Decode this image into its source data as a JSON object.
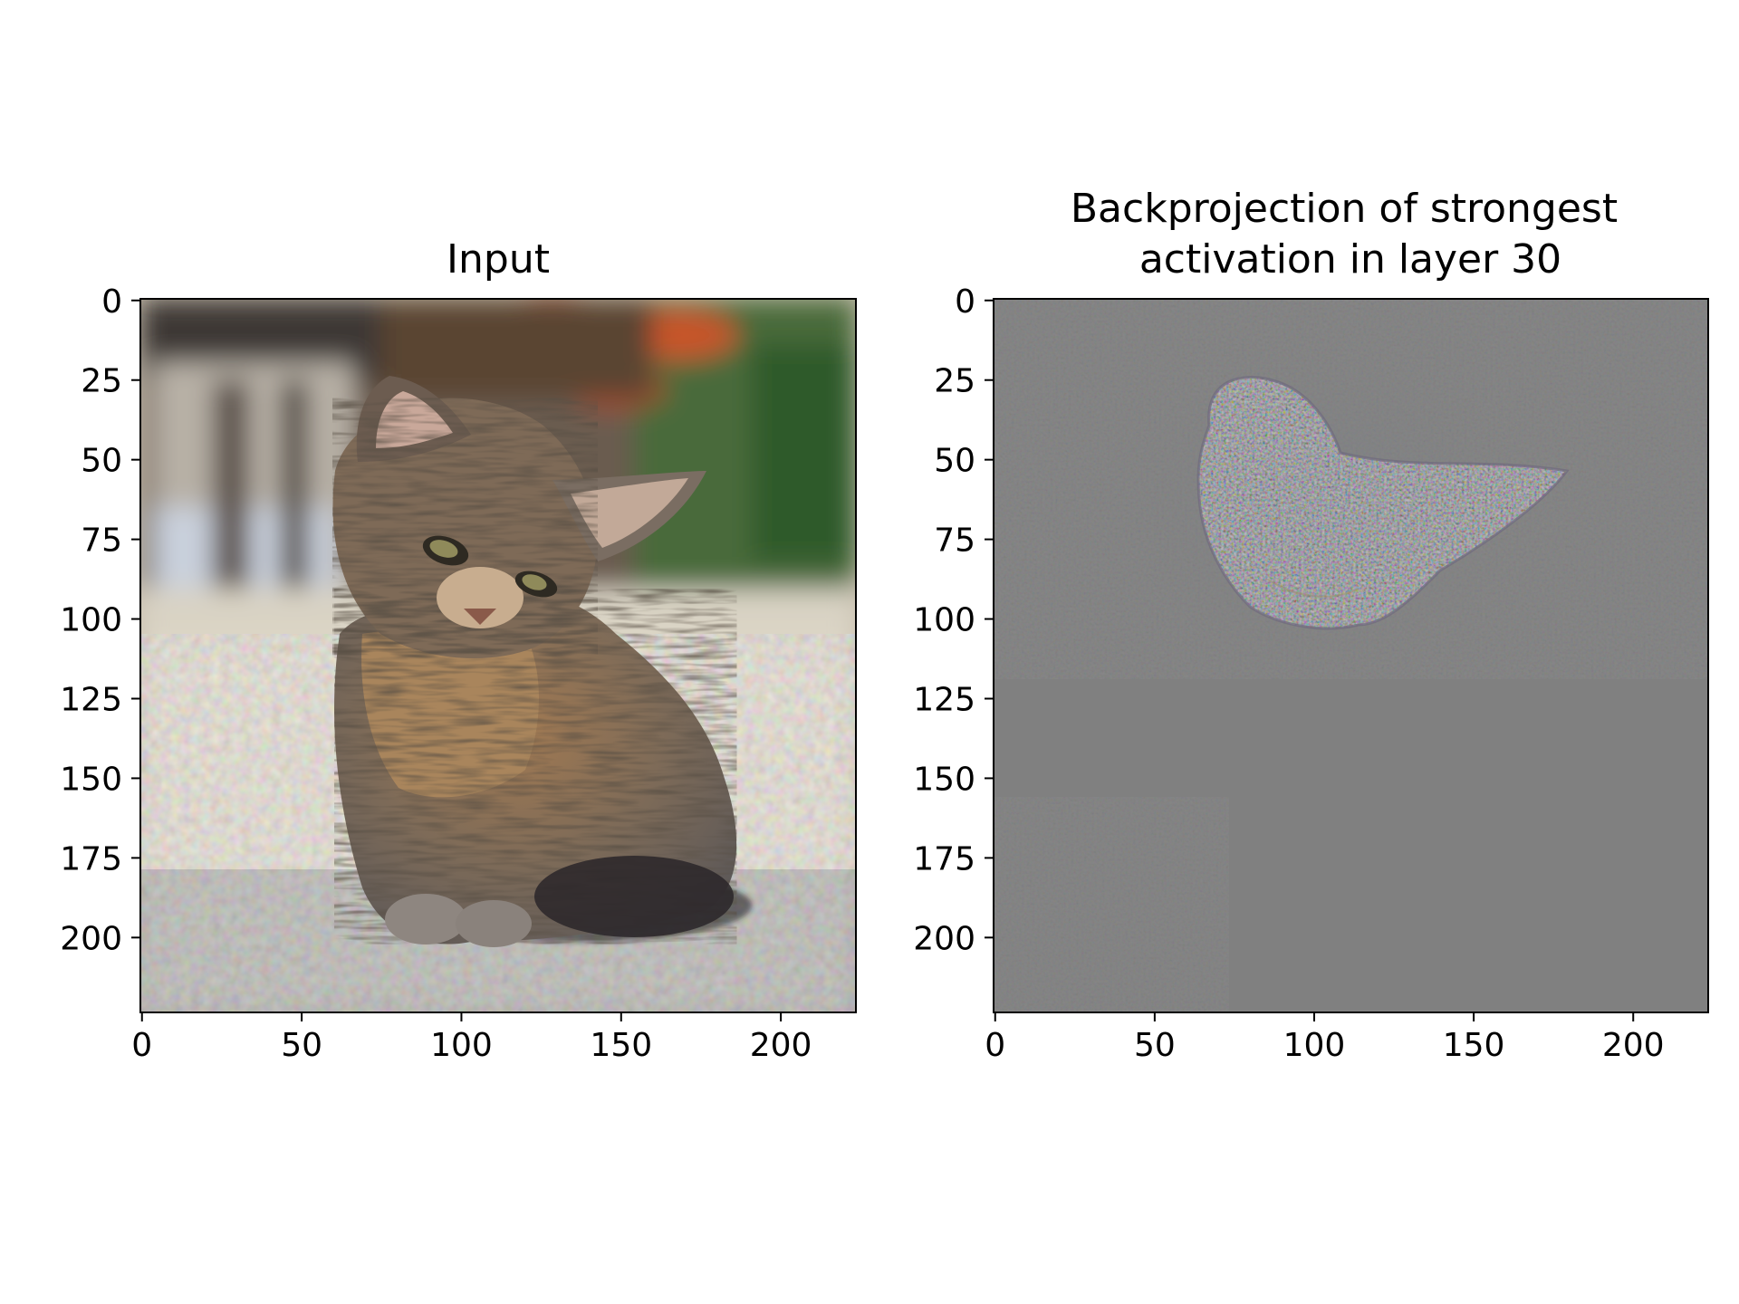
{
  "chart_data": [
    {
      "type": "image",
      "title": "Input",
      "xticks": [
        0,
        50,
        100,
        150,
        200
      ],
      "yticks": [
        0,
        25,
        50,
        75,
        100,
        125,
        150,
        175,
        200
      ],
      "xlim": [
        -0.5,
        223.5
      ],
      "ylim": [
        223.5,
        -0.5
      ],
      "image_content": "photo of a tabby kitten sitting on a speckled floor"
    },
    {
      "type": "image",
      "title": "Backprojection of strongest\nactivation in layer 30",
      "title_lines": [
        "Backprojection of strongest",
        "activation in layer 30"
      ],
      "xticks": [
        0,
        50,
        100,
        150,
        200
      ],
      "yticks": [
        0,
        25,
        50,
        75,
        100,
        125,
        150,
        175,
        200
      ],
      "xlim": [
        -0.5,
        223.5
      ],
      "ylim": [
        223.5,
        -0.5
      ],
      "image_content": "gray backprojection map with colored noise outlining the kitten's head and ear"
    }
  ],
  "colors": {
    "backprojection_gray": "#808080",
    "kitten_brown": "#8a6a48",
    "kitten_gray": "#6e6b6b",
    "floor": "#d8d2c2",
    "background_green": "#4a6a3a",
    "background_orange": "#c8552a"
  }
}
